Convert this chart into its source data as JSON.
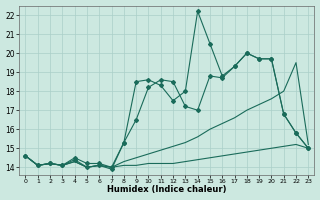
{
  "xlabel": "Humidex (Indice chaleur)",
  "bg_color": "#cce8e0",
  "grid_color": "#aacfc8",
  "line_color": "#1a6b5a",
  "xlim": [
    -0.5,
    23.5
  ],
  "ylim": [
    13.6,
    22.5
  ],
  "yticks": [
    14,
    15,
    16,
    17,
    18,
    19,
    20,
    21,
    22
  ],
  "xticks": [
    0,
    1,
    2,
    3,
    4,
    5,
    6,
    7,
    8,
    9,
    10,
    11,
    12,
    13,
    14,
    15,
    16,
    17,
    18,
    19,
    20,
    21,
    22,
    23
  ],
  "lines": [
    {
      "x": [
        0,
        1,
        2,
        3,
        4,
        5,
        6,
        7,
        8,
        9,
        10,
        11,
        12,
        13,
        14,
        15,
        16,
        17,
        18,
        19,
        20,
        21,
        22,
        23
      ],
      "y": [
        14.6,
        14.1,
        14.2,
        14.1,
        14.3,
        14.0,
        14.1,
        14.0,
        14.1,
        14.1,
        14.2,
        14.2,
        14.2,
        14.3,
        14.4,
        14.5,
        14.6,
        14.7,
        14.8,
        14.9,
        15.0,
        15.1,
        15.2,
        15.0
      ],
      "marker": false
    },
    {
      "x": [
        0,
        1,
        2,
        3,
        4,
        5,
        6,
        7,
        8,
        9,
        10,
        11,
        12,
        13,
        14,
        15,
        16,
        17,
        18,
        19,
        20,
        21,
        22,
        23
      ],
      "y": [
        14.6,
        14.1,
        14.2,
        14.1,
        14.3,
        14.0,
        14.1,
        14.0,
        14.3,
        14.5,
        14.7,
        14.9,
        15.1,
        15.3,
        15.6,
        16.0,
        16.3,
        16.6,
        17.0,
        17.3,
        17.6,
        18.0,
        19.5,
        15.2
      ],
      "marker": false
    },
    {
      "x": [
        0,
        1,
        2,
        3,
        4,
        5,
        6,
        7,
        8,
        9,
        10,
        11,
        12,
        13,
        14,
        15,
        16,
        17,
        18,
        19,
        20,
        21,
        22,
        23
      ],
      "y": [
        14.6,
        14.1,
        14.2,
        14.1,
        14.5,
        14.2,
        14.2,
        14.0,
        15.3,
        16.5,
        18.2,
        18.6,
        18.5,
        17.2,
        17.0,
        18.8,
        18.7,
        19.3,
        20.0,
        19.7,
        19.7,
        16.8,
        15.8,
        15.0
      ],
      "marker": true
    },
    {
      "x": [
        0,
        1,
        2,
        3,
        4,
        5,
        6,
        7,
        8,
        9,
        10,
        11,
        12,
        13,
        14,
        15,
        16,
        17,
        18,
        19,
        20,
        21,
        22,
        23
      ],
      "y": [
        14.6,
        14.1,
        14.2,
        14.1,
        14.4,
        14.0,
        14.1,
        13.9,
        15.3,
        18.5,
        18.6,
        18.3,
        17.5,
        18.0,
        22.2,
        20.5,
        18.8,
        19.3,
        20.0,
        19.7,
        19.7,
        16.8,
        15.8,
        15.0
      ],
      "marker": true
    }
  ]
}
